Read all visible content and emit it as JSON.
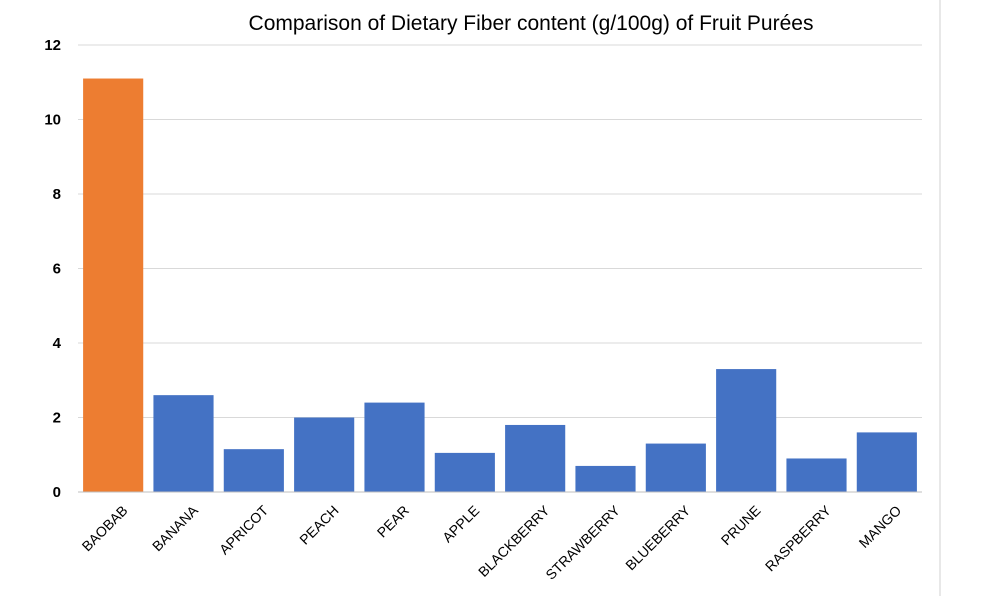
{
  "chart_data": {
    "type": "bar",
    "title": "Comparison of Dietary Fiber content (g/100g) of Fruit Purées",
    "xlabel": "",
    "ylabel": "",
    "categories": [
      "BAOBAB",
      "BANANA",
      "APRICOT",
      "PEACH",
      "PEAR",
      "APPLE",
      "BLACKBERRY",
      "STRAWBERRY",
      "BLUEBERRY",
      "PRUNE",
      "RASPBERRY",
      "MANGO"
    ],
    "values": [
      11.1,
      2.6,
      1.15,
      2.0,
      2.4,
      1.05,
      1.8,
      0.7,
      1.3,
      3.3,
      0.9,
      1.6
    ],
    "colors": [
      "#ED7D31",
      "#4472C4",
      "#4472C4",
      "#4472C4",
      "#4472C4",
      "#4472C4",
      "#4472C4",
      "#4472C4",
      "#4472C4",
      "#4472C4",
      "#4472C4",
      "#4472C4"
    ],
    "ylim": [
      0,
      12
    ],
    "yticks": [
      "0",
      "2",
      "4",
      "6",
      "8",
      "10",
      "12"
    ],
    "grid": true,
    "legend": "none"
  }
}
